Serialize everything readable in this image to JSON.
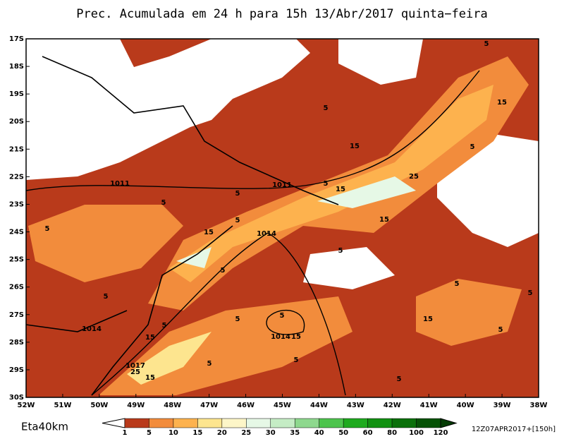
{
  "title": "Prec. Acumulada em 24 h para 15h 13/Abr/2017 quinta−feira",
  "lat_labels": [
    "17S",
    "18S",
    "19S",
    "20S",
    "21S",
    "22S",
    "23S",
    "24S",
    "25S",
    "26S",
    "27S",
    "28S",
    "29S",
    "30S"
  ],
  "lon_labels": [
    "52W",
    "51W",
    "50W",
    "49W",
    "48W",
    "47W",
    "46W",
    "45W",
    "44W",
    "43W",
    "42W",
    "41W",
    "40W",
    "39W",
    "38W"
  ],
  "contour_labels": [
    "5",
    "5",
    "15",
    "15",
    "5",
    "1011",
    "1011",
    "5",
    "15",
    "25",
    "5",
    "5",
    "15",
    "5",
    "5",
    "15",
    "1014",
    "5",
    "5",
    "5",
    "5",
    "5",
    "15",
    "5",
    "5",
    "5",
    "1014",
    "5",
    "15",
    "1014",
    "15",
    "5",
    "1017",
    "25",
    "5",
    "15",
    "5"
  ],
  "model": "Eta40km",
  "run": "12Z07APR2017+[150h]",
  "colorbar": {
    "labels": [
      "1",
      "5",
      "10",
      "15",
      "20",
      "25",
      "30",
      "35",
      "40",
      "50",
      "60",
      "80",
      "100",
      "120"
    ],
    "colors": [
      "#ffffff",
      "#b93a1b",
      "#f28c3c",
      "#fdb24e",
      "#fde58f",
      "#fdf6c8",
      "#e6f8e6",
      "#c5ecc5",
      "#8ed88e",
      "#4dc44d",
      "#1eaa1e",
      "#119111",
      "#0a700a",
      "#055205",
      "#033a03"
    ]
  }
}
